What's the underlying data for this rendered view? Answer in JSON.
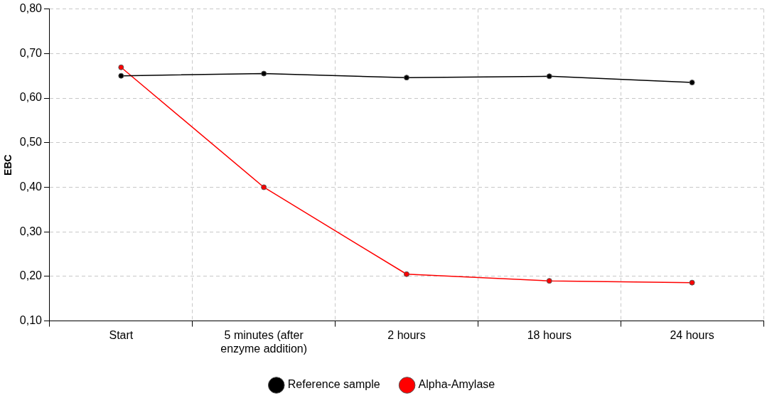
{
  "chart_data": {
    "type": "line",
    "ylabel": "EBC",
    "categories": [
      "Start",
      "5 minutes (after enzyme addition)",
      "2 hours",
      "18 hours",
      "24 hours"
    ],
    "series": [
      {
        "name": "Reference sample",
        "color": "#000000",
        "values": [
          0.65,
          0.655,
          0.646,
          0.649,
          0.635
        ]
      },
      {
        "name": "Alpha-Amylase",
        "color": "#ff0000",
        "values": [
          0.669,
          0.4,
          0.205,
          0.19,
          0.186
        ]
      }
    ],
    "ylim": [
      0.1,
      0.8
    ],
    "yticks": [
      {
        "value": 0.1,
        "label": "0,10"
      },
      {
        "value": 0.2,
        "label": "0,20"
      },
      {
        "value": 0.3,
        "label": "0,30"
      },
      {
        "value": 0.4,
        "label": "0,40"
      },
      {
        "value": 0.5,
        "label": "0,50"
      },
      {
        "value": 0.6,
        "label": "0,60"
      },
      {
        "value": 0.7,
        "label": "0,70"
      },
      {
        "value": 0.8,
        "label": "0,80"
      }
    ],
    "grid": true,
    "legend": "bottom",
    "marker": "circle",
    "line_style": "solid"
  }
}
